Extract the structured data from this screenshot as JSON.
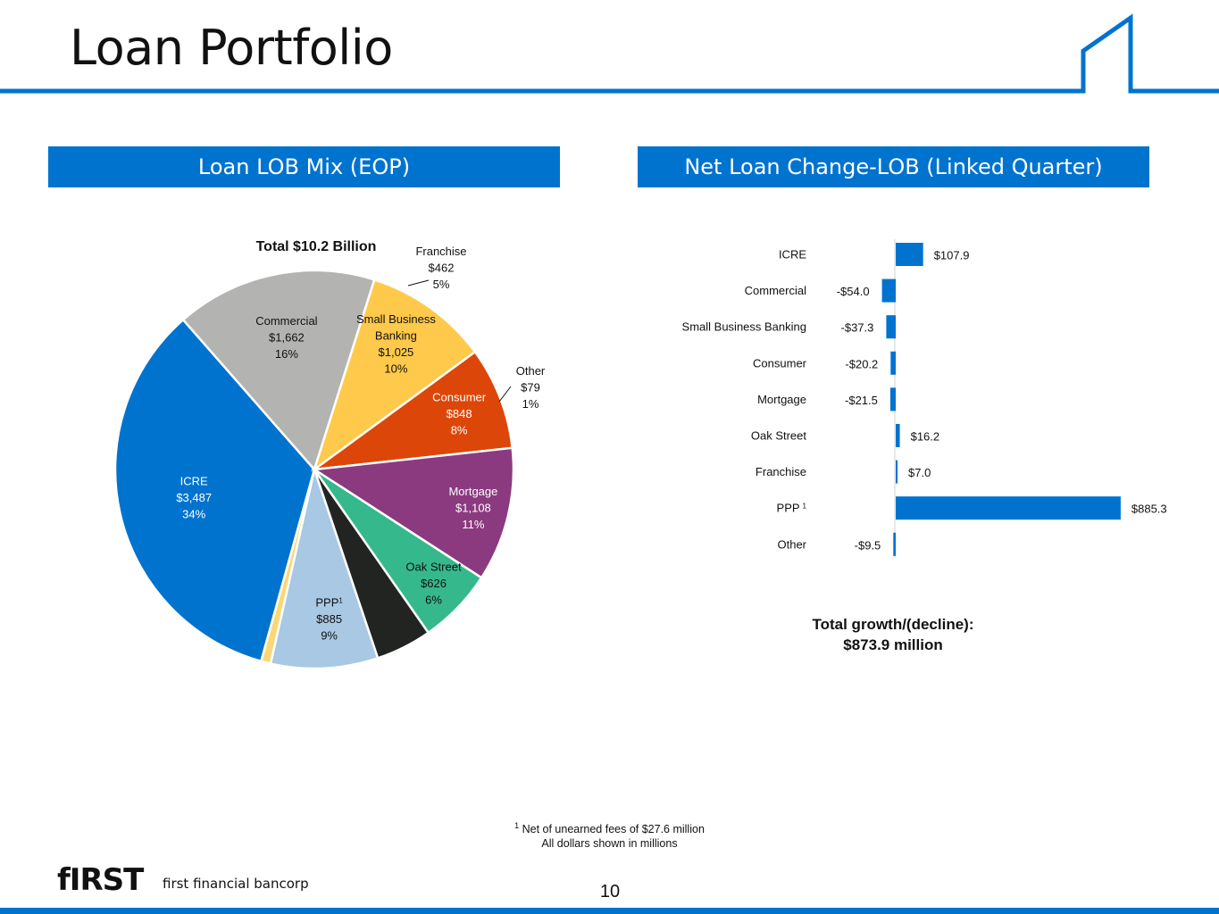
{
  "header": {
    "title": "Loan Portfolio",
    "accent_color": "#0073cf"
  },
  "panels": {
    "left_title": "Loan LOB Mix (EOP)",
    "right_title": "Net Loan Change-LOB (Linked Quarter)"
  },
  "chart_data": [
    {
      "type": "pie",
      "title": "Total $10.2 Billion",
      "slices": [
        {
          "label": "ICRE",
          "value": 3487,
          "value_label": "$3,487",
          "pct_label": "34%",
          "color": "#0073cf",
          "label_color": "#ffffff"
        },
        {
          "label": "Commercial",
          "value": 1662,
          "value_label": "$1,662",
          "pct_label": "16%",
          "color": "#b3b3b1",
          "label_color": "#111111"
        },
        {
          "label": "Small Business Banking",
          "value": 1025,
          "value_label": "$1,025",
          "pct_label": "10%",
          "color": "#ffc94b",
          "label_color": "#111111"
        },
        {
          "label": "Consumer",
          "value": 848,
          "value_label": "$848",
          "pct_label": "8%",
          "color": "#dd4609",
          "label_color": "#ffffff"
        },
        {
          "label": "Mortgage",
          "value": 1108,
          "value_label": "$1,108",
          "pct_label": "11%",
          "color": "#8b3a80",
          "label_color": "#ffffff"
        },
        {
          "label": "Oak Street",
          "value": 626,
          "value_label": "$626",
          "pct_label": "6%",
          "color": "#36b88d",
          "label_color": "#111111"
        },
        {
          "label": "Franchise",
          "value": 462,
          "value_label": "$462",
          "pct_label": "5%",
          "color": "#222422",
          "label_color": "#111111"
        },
        {
          "label": "PPP",
          "superscript": "1",
          "value": 885,
          "value_label": "$885",
          "pct_label": "9%",
          "color": "#a8c8e3",
          "label_color": "#111111"
        },
        {
          "label": "Other",
          "value": 79,
          "value_label": "$79",
          "pct_label": "1%",
          "color": "#fbd775",
          "label_color": "#111111"
        }
      ]
    },
    {
      "type": "bar",
      "orientation": "horizontal",
      "color": "#0073cf",
      "categories": [
        "ICRE",
        "Commercial",
        "Small Business Banking",
        "Consumer",
        "Mortgage",
        "Oak Street",
        "Franchise",
        "PPP",
        "Other"
      ],
      "superscripts": [
        "",
        "",
        "",
        "",
        "",
        "",
        "",
        "1",
        ""
      ],
      "values": [
        107.9,
        -54.0,
        -37.3,
        -20.2,
        -21.5,
        16.2,
        7.0,
        885.3,
        -9.5
      ],
      "value_labels": [
        "$107.9",
        "-$54.0",
        "-$37.3",
        "-$20.2",
        "-$21.5",
        "$16.2",
        "$7.0",
        "$885.3",
        "-$9.5"
      ]
    }
  ],
  "summary": {
    "line1": "Total growth/(decline):",
    "line2": "$873.9 million"
  },
  "footnote": {
    "marker": "1",
    "line1": "Net of unearned fees of $27.6 million",
    "line2": "All dollars shown in millions"
  },
  "footer": {
    "logo_text": "fIRST",
    "logo_tagline": "first financial bancorp",
    "page_number": "10"
  }
}
